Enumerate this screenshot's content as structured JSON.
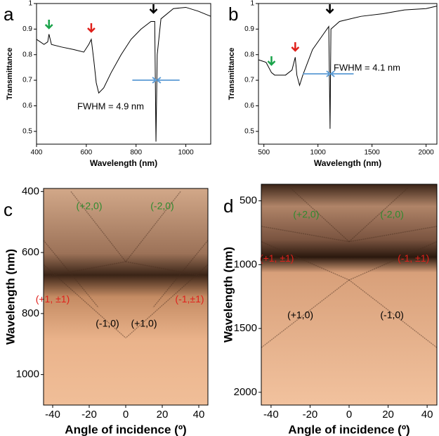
{
  "chart_data": [
    {
      "type": "line",
      "panel_label": "a",
      "xlabel": "Wavelength (nm)",
      "ylabel": "Transmittance",
      "annotation": "FWHM = 4.9 nm",
      "xlim": [
        400,
        1100
      ],
      "xticks": [
        400,
        600,
        800,
        1000
      ],
      "ylim": [
        0.45,
        1.0
      ],
      "yticks": [
        0.5,
        0.6,
        0.7,
        0.8,
        0.9,
        1.0
      ],
      "x": [
        400,
        430,
        445,
        450,
        460,
        500,
        550,
        590,
        610,
        620,
        630,
        640,
        650,
        670,
        700,
        740,
        780,
        820,
        860,
        875,
        880,
        885,
        900,
        950,
        1000,
        1050,
        1100
      ],
      "series": [
        {
          "color": "#000000",
          "values": [
            0.86,
            0.84,
            0.85,
            0.88,
            0.84,
            0.83,
            0.82,
            0.81,
            0.84,
            0.86,
            0.78,
            0.69,
            0.65,
            0.67,
            0.73,
            0.8,
            0.86,
            0.9,
            0.93,
            0.93,
            0.46,
            0.8,
            0.94,
            0.98,
            0.985,
            0.97,
            0.95
          ]
        }
      ]
    },
    {
      "type": "line",
      "panel_label": "b",
      "xlabel": "Wavelength (nm)",
      "ylabel": "Transmittance",
      "annotation": "FWHM = 4.1 nm",
      "xlim": [
        450,
        2100
      ],
      "xticks": [
        500,
        1000,
        1500,
        2000
      ],
      "ylim": [
        0.45,
        1.0
      ],
      "yticks": [
        0.5,
        0.6,
        0.7,
        0.8,
        0.9,
        1.0
      ],
      "x": [
        450,
        520,
        570,
        600,
        700,
        760,
        790,
        805,
        830,
        860,
        950,
        1050,
        1100,
        1112,
        1120,
        1200,
        1400,
        1600,
        1800,
        2000,
        2100
      ],
      "series": [
        {
          "color": "#000000",
          "values": [
            0.78,
            0.77,
            0.73,
            0.72,
            0.72,
            0.74,
            0.79,
            0.72,
            0.68,
            0.72,
            0.82,
            0.88,
            0.91,
            0.51,
            0.9,
            0.93,
            0.95,
            0.96,
            0.975,
            0.98,
            0.99
          ]
        }
      ]
    },
    {
      "type": "heatmap",
      "panel_label": "c",
      "xlabel": "Angle of incidence (º)",
      "ylabel": "Wavelength (nm)",
      "xlim": [
        -45,
        45
      ],
      "xticks": [
        -40,
        -20,
        0,
        20,
        40
      ],
      "ylim": [
        1100,
        390
      ],
      "yticks": [
        400,
        600,
        800,
        1000
      ],
      "labels": [
        {
          "text": "(+2,0)",
          "color": "#2e8b2e"
        },
        {
          "text": "(-2,0)",
          "color": "#2e8b2e"
        },
        {
          "text": "(+1, ±1)",
          "color": "#e0201b"
        },
        {
          "text": "(-1,±1)",
          "color": "#e0201b"
        },
        {
          "text": "(-1,0)",
          "color": "#000000"
        },
        {
          "text": "(+1,0)",
          "color": "#000000"
        }
      ]
    },
    {
      "type": "heatmap",
      "panel_label": "d",
      "xlabel": "Angle of incidence (º)",
      "ylabel": "Wavelength (nm)",
      "xlim": [
        -45,
        45
      ],
      "xticks": [
        -40,
        -20,
        0,
        20,
        40
      ],
      "ylim": [
        2100,
        370
      ],
      "yticks": [
        500,
        1000,
        1500,
        2000
      ],
      "labels": [
        {
          "text": "(+2,0)",
          "color": "#2e8b2e"
        },
        {
          "text": "(-2,0)",
          "color": "#2e8b2e"
        },
        {
          "text": "(+1, ±1)",
          "color": "#e0201b"
        },
        {
          "text": "(-1, ±1)",
          "color": "#e0201b"
        },
        {
          "text": "(+1,0)",
          "color": "#000000"
        },
        {
          "text": "(-1,0)",
          "color": "#000000"
        }
      ]
    }
  ]
}
